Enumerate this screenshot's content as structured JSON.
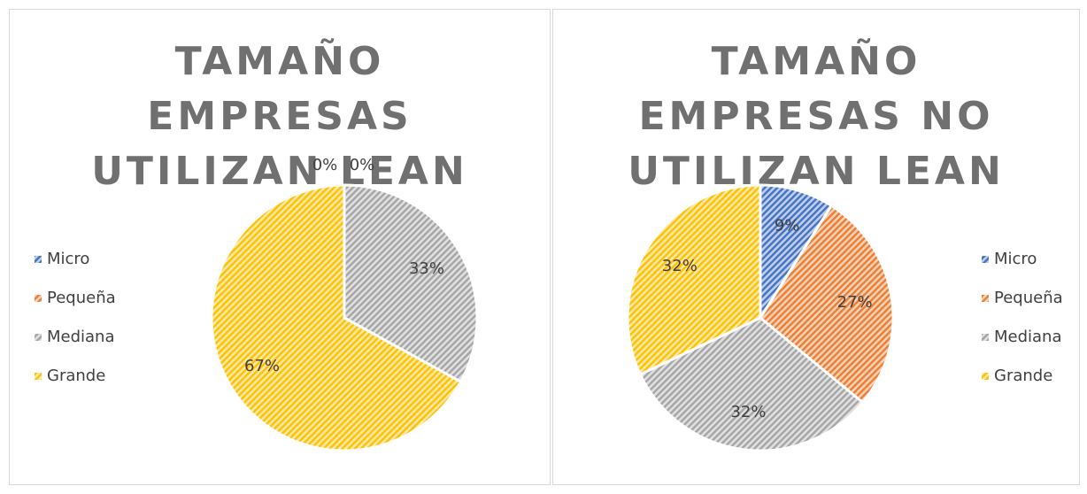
{
  "chart_data": [
    {
      "type": "pie",
      "title": "TAMAÑO EMPRESAS UTILIZAN LEAN",
      "categories": [
        "Micro",
        "Pequeña",
        "Mediana",
        "Grande"
      ],
      "values": [
        0,
        0,
        33,
        67
      ],
      "value_labels": [
        "0%",
        "0%",
        "33%",
        "67%"
      ],
      "colors": [
        "#4472c4",
        "#ed7d31",
        "#a5a5a5",
        "#ffc000"
      ],
      "legend": "left"
    },
    {
      "type": "pie",
      "title": "TAMAÑO EMPRESAS NO UTILIZAN LEAN",
      "categories": [
        "Micro",
        "Pequeña",
        "Mediana",
        "Grande"
      ],
      "values": [
        9,
        27,
        32,
        32
      ],
      "value_labels": [
        "9%",
        "27%",
        "32%",
        "32%"
      ],
      "colors": [
        "#4472c4",
        "#ed7d31",
        "#a5a5a5",
        "#ffc000"
      ],
      "legend": "right"
    }
  ]
}
